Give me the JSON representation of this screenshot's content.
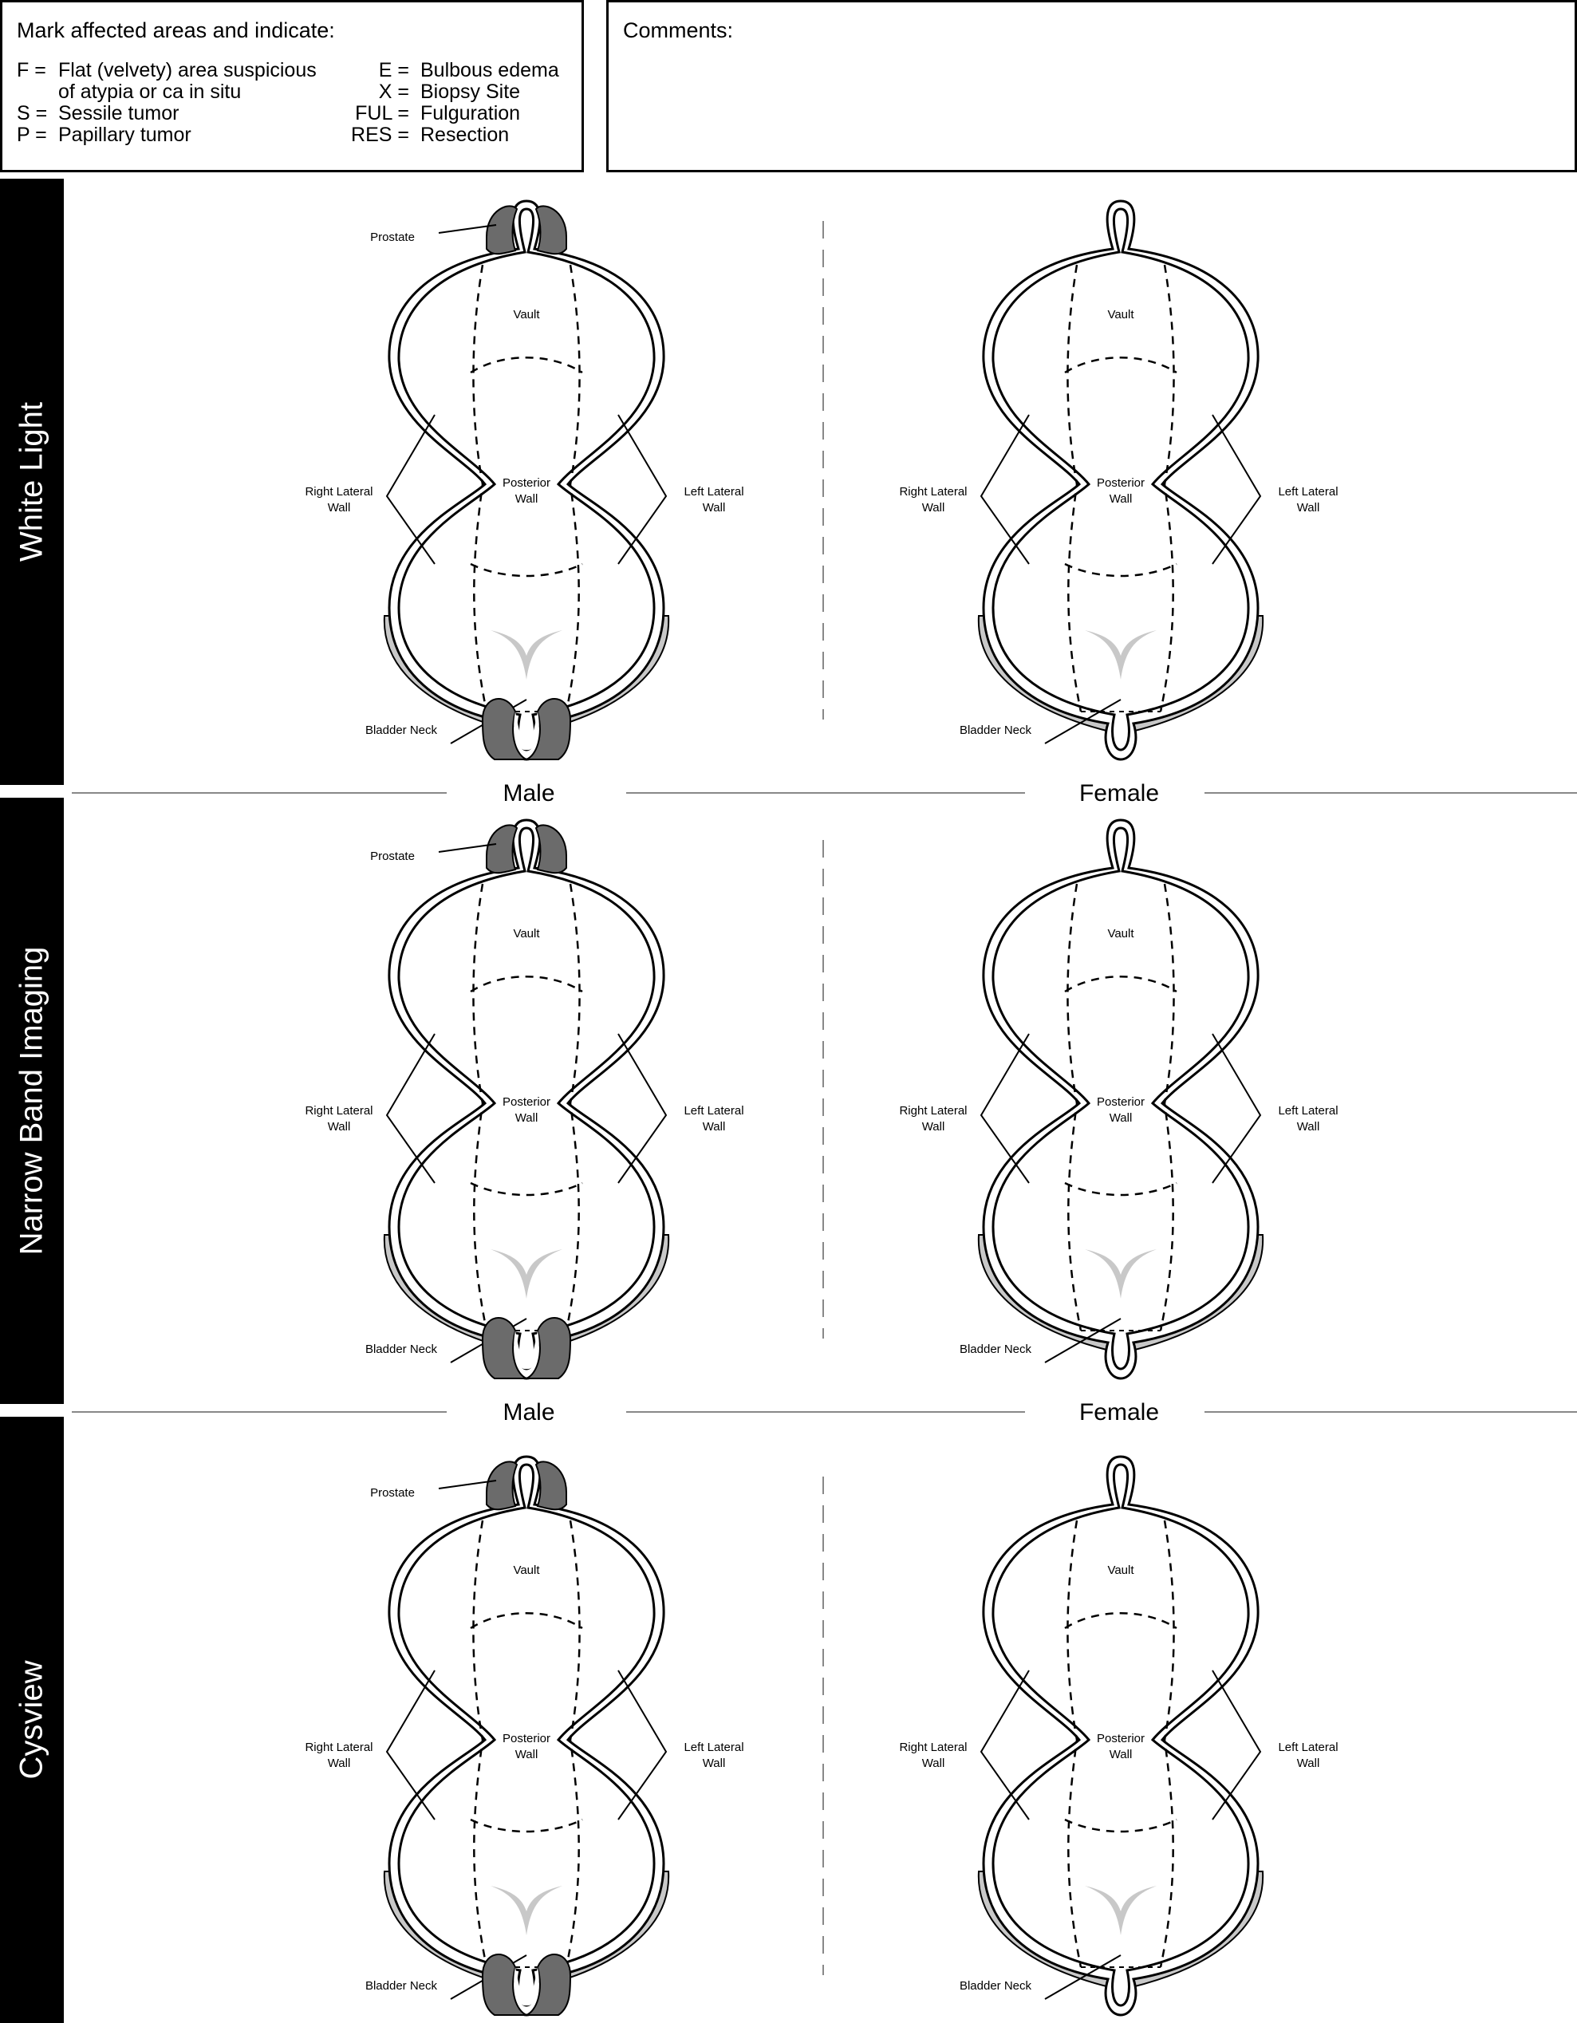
{
  "legend": {
    "title": "Mark affected areas and indicate:",
    "left_items": [
      {
        "code": "F =",
        "text": "Flat (velvety) area suspicious",
        "text2": "of atypia or ca in situ"
      },
      {
        "code": "S =",
        "text": "Sessile tumor"
      },
      {
        "code": "P =",
        "text": "Papillary tumor"
      }
    ],
    "right_items": [
      {
        "code": "E =",
        "text": "Bulbous edema"
      },
      {
        "code": "X =",
        "text": "Biopsy Site"
      },
      {
        "code": "FUL =",
        "text": "Fulguration"
      },
      {
        "code": "RES =",
        "text": "Resection"
      }
    ]
  },
  "comments": {
    "label": "Comments:"
  },
  "sections": [
    {
      "name": "White Light"
    },
    {
      "name": "Narrow Band Imaging"
    },
    {
      "name": "Cysview"
    }
  ],
  "sex_labels": {
    "male": "Male",
    "female": "Female"
  },
  "diagram_labels": {
    "prostate": "Prostate",
    "vault": "Vault",
    "posterior_1": "Posterior",
    "posterior_2": "Wall",
    "right_1": "Right Lateral",
    "right_2": "Wall",
    "left_1": "Left Lateral",
    "left_2": "Wall",
    "bladder_neck": "Bladder Neck"
  },
  "colors": {
    "dark_gray": "#6b6b6b",
    "light_gray": "#c8c8c8",
    "mid_gray": "#8f8f8f"
  }
}
